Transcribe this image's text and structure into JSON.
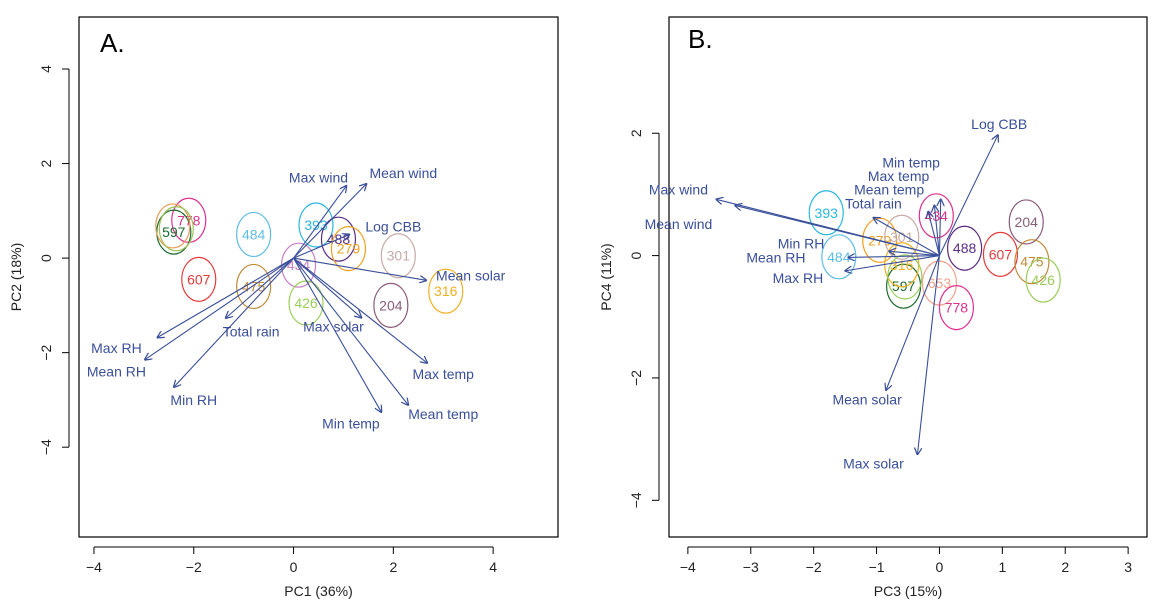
{
  "colors": {
    "arrow": "#3a4f9a",
    "frame": "#000000"
  },
  "chart_data": [
    {
      "type": "scatter",
      "panel_label": "A.",
      "xlabel": "PC1 (36%)",
      "ylabel": "PC2 (18%)",
      "xlim": [
        -4.3,
        5.3
      ],
      "ylim": [
        -5.9,
        5.1
      ],
      "xticks": [
        -4,
        -2,
        0,
        2,
        4
      ],
      "xtick_labels": [
        "−4",
        "−2",
        "0",
        "2",
        "4"
      ],
      "yticks": [
        -4,
        -2,
        0,
        2,
        4
      ],
      "ytick_labels": [
        "−4",
        "−2",
        "0",
        "2",
        "4"
      ],
      "origin": [
        0,
        0
      ],
      "loadings": [
        {
          "name": "Max wind",
          "x": 1.06,
          "y": 1.53,
          "lx": 0.5,
          "ly": 1.7
        },
        {
          "name": "Mean wind",
          "x": 1.46,
          "y": 1.57,
          "lx": 2.2,
          "ly": 1.8
        },
        {
          "name": "Log CBB",
          "x": 1.12,
          "y": 0.5,
          "lx": 2.0,
          "ly": 0.67
        },
        {
          "name": "Mean solar",
          "x": 2.66,
          "y": -0.47,
          "lx": 3.55,
          "ly": -0.37
        },
        {
          "name": "Max solar",
          "x": 1.36,
          "y": -1.26,
          "lx": 0.8,
          "ly": -1.45
        },
        {
          "name": "Max temp",
          "x": 2.68,
          "y": -2.22,
          "lx": 3.0,
          "ly": -2.45
        },
        {
          "name": "Mean temp",
          "x": 2.3,
          "y": -3.11,
          "lx": 3.0,
          "ly": -3.3
        },
        {
          "name": "Min temp",
          "x": 1.76,
          "y": -3.26,
          "lx": 1.15,
          "ly": -3.5
        },
        {
          "name": "Total rain",
          "x": -1.36,
          "y": -1.27,
          "lx": -0.85,
          "ly": -1.55
        },
        {
          "name": "Max RH",
          "x": -2.73,
          "y": -1.68,
          "lx": -3.55,
          "ly": -1.9
        },
        {
          "name": "Mean RH",
          "x": -2.98,
          "y": -2.15,
          "lx": -3.55,
          "ly": -2.4
        },
        {
          "name": "Min RH",
          "x": -2.4,
          "y": -2.73,
          "lx": -2.0,
          "ly": -3.0
        }
      ],
      "sites": [
        {
          "label": "778",
          "x": -2.1,
          "y": 0.8,
          "color": "#e0308f"
        },
        {
          "label": "597",
          "x": -2.4,
          "y": 0.55,
          "color": "#1d6b2e"
        },
        {
          "label": "597b",
          "label_text": "",
          "x": -2.42,
          "y": 0.68,
          "color": "#e89a5a"
        },
        {
          "label": "597c",
          "label_text": "",
          "x": -2.35,
          "y": 0.62,
          "color": "#9bc456"
        },
        {
          "label": "484",
          "x": -0.8,
          "y": 0.5,
          "color": "#5ebde6"
        },
        {
          "label": "607",
          "x": -1.9,
          "y": -0.45,
          "color": "#e63b3b"
        },
        {
          "label": "475",
          "x": -0.8,
          "y": -0.6,
          "color": "#c08b3a"
        },
        {
          "label": "393",
          "x": 0.45,
          "y": 0.7,
          "color": "#29b6e0"
        },
        {
          "label": "488",
          "x": 0.9,
          "y": 0.4,
          "color": "#5b2c83"
        },
        {
          "label": "279",
          "x": 1.1,
          "y": 0.2,
          "color": "#f0a020"
        },
        {
          "label": "301",
          "x": 2.1,
          "y": 0.05,
          "color": "#c6aba6"
        },
        {
          "label": "434",
          "x": 0.1,
          "y": -0.15,
          "color": "#c87fc5"
        },
        {
          "label": "426",
          "x": 0.25,
          "y": -0.95,
          "color": "#9acd5a"
        },
        {
          "label": "204",
          "x": 1.95,
          "y": -1.0,
          "color": "#8a5c7a"
        },
        {
          "label": "316",
          "x": 3.05,
          "y": -0.7,
          "color": "#f0b020"
        }
      ]
    },
    {
      "type": "scatter",
      "panel_label": "B.",
      "xlabel": "PC3 (15%)",
      "ylabel": "PC4 (11%)",
      "xlim": [
        -4.3,
        3.3
      ],
      "ylim": [
        -4.6,
        3.9
      ],
      "xticks": [
        -4,
        -3,
        -2,
        -1,
        0,
        1,
        2,
        3
      ],
      "xtick_labels": [
        "−4",
        "−3",
        "−2",
        "−1",
        "0",
        "1",
        "2",
        "3"
      ],
      "yticks": [
        -4,
        -2,
        0,
        2
      ],
      "ytick_labels": [
        "−4",
        "−2",
        "0",
        "2"
      ],
      "origin": [
        0,
        0
      ],
      "loadings": [
        {
          "name": "Log CBB",
          "x": 0.93,
          "y": 1.97,
          "lx": 0.95,
          "ly": 2.15
        },
        {
          "name": "Min temp",
          "x": 0.02,
          "y": 0.92,
          "lx": -0.45,
          "ly": 1.52
        },
        {
          "name": "Max temp",
          "x": -0.08,
          "y": 0.82,
          "lx": -0.65,
          "ly": 1.3
        },
        {
          "name": "Mean temp",
          "x": -0.18,
          "y": 0.72,
          "lx": -0.8,
          "ly": 1.08
        },
        {
          "name": "Total rain",
          "x": -1.05,
          "y": 0.62,
          "lx": -1.05,
          "ly": 0.85
        },
        {
          "name": "Max wind",
          "x": -3.55,
          "y": 0.92,
          "lx": -4.15,
          "ly": 1.08
        },
        {
          "name": "Mean wind",
          "x": -3.25,
          "y": 0.82,
          "lx": -4.15,
          "ly": 0.52
        },
        {
          "name": "Min RH",
          "x": -0.8,
          "y": 0.07,
          "lx": -2.2,
          "ly": 0.2
        },
        {
          "name": "Mean RH",
          "x": -1.45,
          "y": -0.03,
          "lx": -2.6,
          "ly": -0.03
        },
        {
          "name": "Max RH",
          "x": -1.5,
          "y": -0.25,
          "lx": -2.25,
          "ly": -0.37
        },
        {
          "name": "Mean solar",
          "x": -0.85,
          "y": -2.2,
          "lx": -1.15,
          "ly": -2.35
        },
        {
          "name": "Max solar",
          "x": -0.35,
          "y": -3.25,
          "lx": -1.05,
          "ly": -3.4
        }
      ],
      "sites": [
        {
          "label": "393",
          "x": -1.8,
          "y": 0.7,
          "color": "#29b6e0"
        },
        {
          "label": "279",
          "x": -0.95,
          "y": 0.25,
          "color": "#f0a020"
        },
        {
          "label": "434",
          "x": -0.05,
          "y": 0.65,
          "color": "#e0308f"
        },
        {
          "label": "484",
          "x": -1.6,
          "y": -0.02,
          "color": "#5ebde6"
        },
        {
          "label": "488",
          "x": 0.4,
          "y": 0.12,
          "color": "#5b2c83"
        },
        {
          "label": "607",
          "x": 0.97,
          "y": 0.02,
          "color": "#e63b3b"
        },
        {
          "label": "204",
          "x": 1.38,
          "y": 0.55,
          "color": "#8a5c7a"
        },
        {
          "label": "475",
          "x": 1.47,
          "y": -0.1,
          "color": "#c08b3a"
        },
        {
          "label": "426",
          "x": 1.65,
          "y": -0.4,
          "color": "#9acd5a"
        },
        {
          "label": "597",
          "x": -0.57,
          "y": -0.5,
          "color": "#1d6b2e"
        },
        {
          "label": "653",
          "x": 0.0,
          "y": -0.45,
          "color": "#f2a088"
        },
        {
          "label": "778",
          "x": 0.27,
          "y": -0.85,
          "color": "#e0308f"
        },
        {
          "label": "316",
          "x": -0.6,
          "y": -0.15,
          "color": "#f0b020"
        },
        {
          "label": "301",
          "x": -0.6,
          "y": 0.3,
          "color": "#c6aba6"
        },
        {
          "label": "426b",
          "label_text": "",
          "x": -0.55,
          "y": -0.35,
          "color": "#9acd5a"
        }
      ]
    }
  ]
}
